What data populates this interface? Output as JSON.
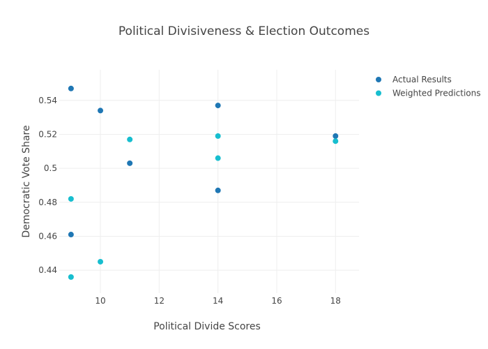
{
  "chart_data": {
    "type": "scatter",
    "title": "Political Divisiveness & Election Outcomes",
    "xlabel": "Political Divide Scores",
    "ylabel": "Democratic Vote Share",
    "xlim": [
      8.6,
      18.8
    ],
    "ylim": [
      0.4265,
      0.558
    ],
    "x_ticks": [
      10,
      12,
      14,
      16,
      18
    ],
    "x_tick_labels": [
      "10",
      "12",
      "14",
      "16",
      "18"
    ],
    "y_ticks": [
      0.44,
      0.46,
      0.48,
      0.5,
      0.52,
      0.54
    ],
    "y_tick_labels": [
      "0.44",
      "0.46",
      "0.48",
      "0.5",
      "0.52",
      "0.54"
    ],
    "grid": true,
    "legend_position": "top-right",
    "series": [
      {
        "name": "Actual Results",
        "color": "#1f77b4",
        "x": [
          9,
          9,
          10,
          11,
          14,
          14,
          18
        ],
        "y": [
          0.547,
          0.461,
          0.534,
          0.503,
          0.537,
          0.487,
          0.519
        ]
      },
      {
        "name": "Weighted Predictions",
        "color": "#17becf",
        "x": [
          9,
          9,
          10,
          11,
          14,
          14,
          18
        ],
        "y": [
          0.482,
          0.436,
          0.445,
          0.517,
          0.519,
          0.506,
          0.516
        ]
      }
    ]
  }
}
